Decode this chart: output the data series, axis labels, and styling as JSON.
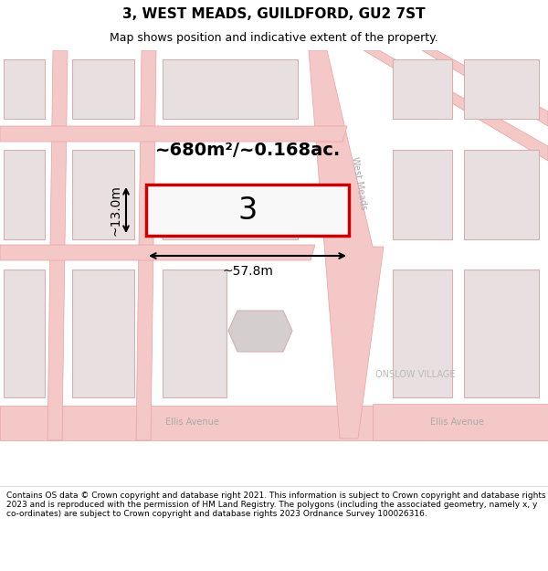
{
  "title": "3, WEST MEADS, GUILDFORD, GU2 7ST",
  "subtitle": "Map shows position and indicative extent of the property.",
  "footer": "Contains OS data © Crown copyright and database right 2021. This information is subject to Crown copyright and database rights 2023 and is reproduced with the permission of HM Land Registry. The polygons (including the associated geometry, namely x, y co-ordinates) are subject to Crown copyright and database rights 2023 Ordnance Survey 100026316.",
  "area_label": "~680m²/~0.168ac.",
  "width_label": "~57.8m",
  "height_label": "~13.0m",
  "property_number": "3",
  "map_bg": "#ffffff",
  "road_color": "#f5c8c8",
  "road_outline": "#e8a0a0",
  "building_fill": "#e8e0e0",
  "building_outline": "#d4b0b0",
  "highlight_rect_color": "#cc0000",
  "street_label_color": "#aaaaaa",
  "street_label_wm": "West Meads",
  "street_label_ellis1": "Ellis Avenue",
  "street_label_ellis2": "Ellis Avenue",
  "village_label": "ONSLOW VILLAGE",
  "fig_width": 6.0,
  "fig_height": 6.25,
  "dpi": 100
}
